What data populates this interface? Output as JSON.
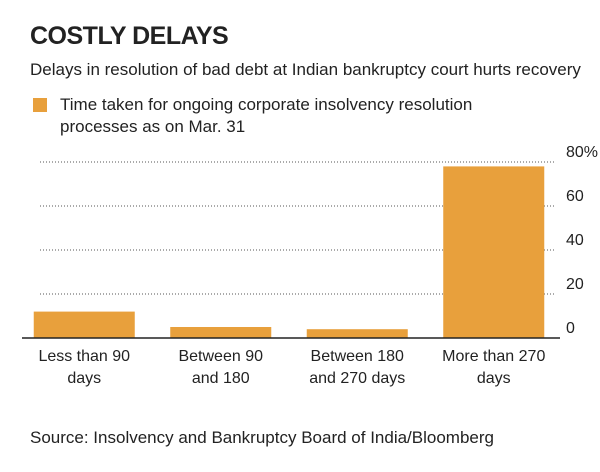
{
  "chart_data": {
    "type": "bar",
    "title": "COSTLY DELAYS",
    "subtitle": "Delays in resolution of bad debt at Indian bankruptcy court hurts recovery",
    "series_name": "Time taken for ongoing corporate insolvency resolution processes as on Mar. 31",
    "categories": [
      "Less than 90 days",
      "Between 90 and 180",
      "Between 180 and 270 days",
      "More than 270 days"
    ],
    "values": [
      12,
      5,
      4,
      78
    ],
    "color": "#e8a03c",
    "ylim": [
      0,
      80
    ],
    "yticks": [
      0,
      20,
      40,
      60,
      {
        "value": 80,
        "label": "80%"
      }
    ],
    "grid": true,
    "source": "Source: Insolvency and Bankruptcy Board of India/Bloomberg"
  }
}
